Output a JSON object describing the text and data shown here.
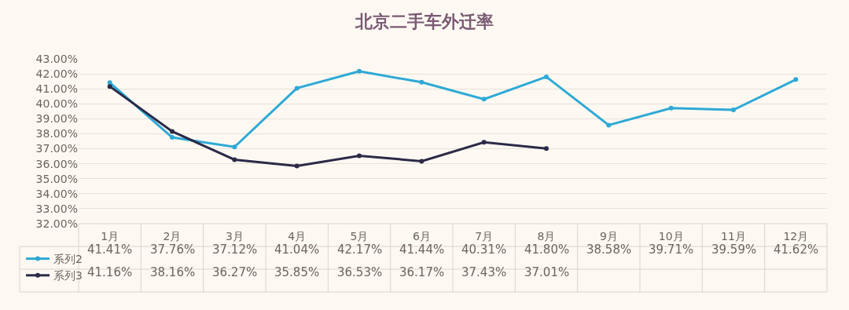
{
  "chart_data": {
    "type": "line",
    "title": "北京二手车外迁率",
    "categories": [
      "1月",
      "2月",
      "3月",
      "4月",
      "5月",
      "6月",
      "7月",
      "8月",
      "9月",
      "10月",
      "11月",
      "12月"
    ],
    "series": [
      {
        "name": "系列2",
        "color": "#2ea9d6",
        "values": [
          41.41,
          37.76,
          37.12,
          41.04,
          42.17,
          41.44,
          40.31,
          41.8,
          38.58,
          39.71,
          39.59,
          41.62
        ],
        "value_labels": [
          "41.41%",
          "37.76%",
          "37.12%",
          "41.04%",
          "42.17%",
          "41.44%",
          "40.31%",
          "41.80%",
          "38.58%",
          "39.71%",
          "39.59%",
          "41.62%"
        ]
      },
      {
        "name": "系列3",
        "color": "#2c2a48",
        "values": [
          41.16,
          38.16,
          36.27,
          35.85,
          36.53,
          36.17,
          37.43,
          37.01,
          null,
          null,
          null,
          null
        ],
        "value_labels": [
          "41.16%",
          "38.16%",
          "36.27%",
          "35.85%",
          "36.53%",
          "36.17%",
          "37.43%",
          "37.01%",
          null,
          null,
          null,
          null
        ]
      }
    ],
    "ylim": [
      32,
      43
    ],
    "yticks": [
      {
        "value": 32,
        "label": "32.00%"
      },
      {
        "value": 33,
        "label": "33.00%"
      },
      {
        "value": 34,
        "label": "34.00%"
      },
      {
        "value": 35,
        "label": "35.00%"
      },
      {
        "value": 36,
        "label": "36.00%"
      },
      {
        "value": 37,
        "label": "37.00%"
      },
      {
        "value": 38,
        "label": "38.00%"
      },
      {
        "value": 39,
        "label": "39.00%"
      },
      {
        "value": 40,
        "label": "40.00%"
      },
      {
        "value": 41,
        "label": "41.00%"
      },
      {
        "value": 42,
        "label": "42.00%"
      },
      {
        "value": 43,
        "label": "43.00%"
      }
    ],
    "grid": "y",
    "legend": "bottom left",
    "marker": "circle",
    "line_style": "solid"
  }
}
